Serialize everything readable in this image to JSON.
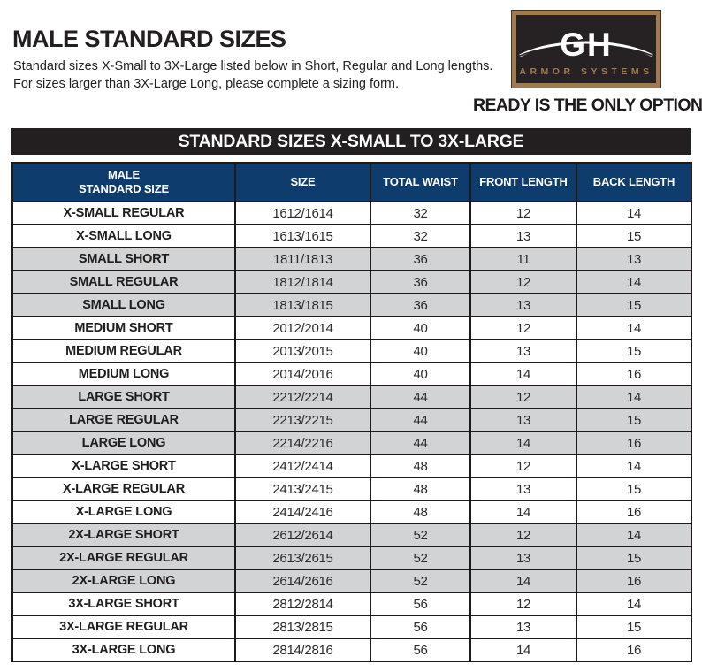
{
  "page": {
    "title": "MALE STANDARD SIZES",
    "subtitle_line1": "Standard sizes X-Small to 3X-Large listed below in Short, Regular and Long lengths.",
    "subtitle_line2": "For sizes larger than 3X-Large Long, please complete a sizing form."
  },
  "logo": {
    "monogram": "GH",
    "name": "ARMOR SYSTEMS",
    "tagline": "READY IS THE ONLY OPTION."
  },
  "banner": {
    "title": "STANDARD SIZES X-SMALL TO 3X-LARGE"
  },
  "table": {
    "columns": [
      {
        "lines": [
          "MALE",
          "STANDARD SIZE"
        ]
      },
      {
        "lines": [
          "SIZE"
        ]
      },
      {
        "lines": [
          "TOTAL WAIST"
        ]
      },
      {
        "lines": [
          "FRONT LENGTH"
        ]
      },
      {
        "lines": [
          "BACK LENGTH"
        ]
      }
    ],
    "rows": [
      {
        "label": "X-SMALL REGULAR",
        "size": "1612/1614",
        "total_waist": "32",
        "front_length": "12",
        "back_length": "14",
        "shaded": false
      },
      {
        "label": "X-SMALL LONG",
        "size": "1613/1615",
        "total_waist": "32",
        "front_length": "13",
        "back_length": "15",
        "shaded": false
      },
      {
        "label": "SMALL SHORT",
        "size": "1811/1813",
        "total_waist": "36",
        "front_length": "11",
        "back_length": "13",
        "shaded": true
      },
      {
        "label": "SMALL REGULAR",
        "size": "1812/1814",
        "total_waist": "36",
        "front_length": "12",
        "back_length": "14",
        "shaded": true
      },
      {
        "label": "SMALL LONG",
        "size": "1813/1815",
        "total_waist": "36",
        "front_length": "13",
        "back_length": "15",
        "shaded": true
      },
      {
        "label": "MEDIUM SHORT",
        "size": "2012/2014",
        "total_waist": "40",
        "front_length": "12",
        "back_length": "14",
        "shaded": false
      },
      {
        "label": "MEDIUM REGULAR",
        "size": "2013/2015",
        "total_waist": "40",
        "front_length": "13",
        "back_length": "15",
        "shaded": false
      },
      {
        "label": "MEDIUM LONG",
        "size": "2014/2016",
        "total_waist": "40",
        "front_length": "14",
        "back_length": "16",
        "shaded": false
      },
      {
        "label": "LARGE SHORT",
        "size": "2212/2214",
        "total_waist": "44",
        "front_length": "12",
        "back_length": "14",
        "shaded": true
      },
      {
        "label": "LARGE REGULAR",
        "size": "2213/2215",
        "total_waist": "44",
        "front_length": "13",
        "back_length": "15",
        "shaded": true
      },
      {
        "label": "LARGE LONG",
        "size": "2214/2216",
        "total_waist": "44",
        "front_length": "14",
        "back_length": "16",
        "shaded": true
      },
      {
        "label": "X-LARGE SHORT",
        "size": "2412/2414",
        "total_waist": "48",
        "front_length": "12",
        "back_length": "14",
        "shaded": false
      },
      {
        "label": "X-LARGE REGULAR",
        "size": "2413/2415",
        "total_waist": "48",
        "front_length": "13",
        "back_length": "15",
        "shaded": false
      },
      {
        "label": "X-LARGE LONG",
        "size": "2414/2416",
        "total_waist": "48",
        "front_length": "14",
        "back_length": "16",
        "shaded": false
      },
      {
        "label": "2X-LARGE SHORT",
        "size": "2612/2614",
        "total_waist": "52",
        "front_length": "12",
        "back_length": "14",
        "shaded": true
      },
      {
        "label": "2X-LARGE REGULAR",
        "size": "2613/2615",
        "total_waist": "52",
        "front_length": "13",
        "back_length": "15",
        "shaded": true
      },
      {
        "label": "2X-LARGE LONG",
        "size": "2614/2616",
        "total_waist": "52",
        "front_length": "14",
        "back_length": "16",
        "shaded": true
      },
      {
        "label": "3X-LARGE SHORT",
        "size": "2812/2814",
        "total_waist": "56",
        "front_length": "12",
        "back_length": "14",
        "shaded": false
      },
      {
        "label": "3X-LARGE REGULAR",
        "size": "2813/2815",
        "total_waist": "56",
        "front_length": "13",
        "back_length": "15",
        "shaded": false
      },
      {
        "label": "3X-LARGE LONG",
        "size": "2814/2816",
        "total_waist": "56",
        "front_length": "14",
        "back_length": "16",
        "shaded": false
      }
    ]
  },
  "colors": {
    "heading_dark": "#231F20",
    "banner_black": "#231F20",
    "header_blue": "#0E3C6D",
    "row_gray": "#D2D3D4",
    "logo_bronze": "#A17B50",
    "logo_interior": "#262122"
  }
}
